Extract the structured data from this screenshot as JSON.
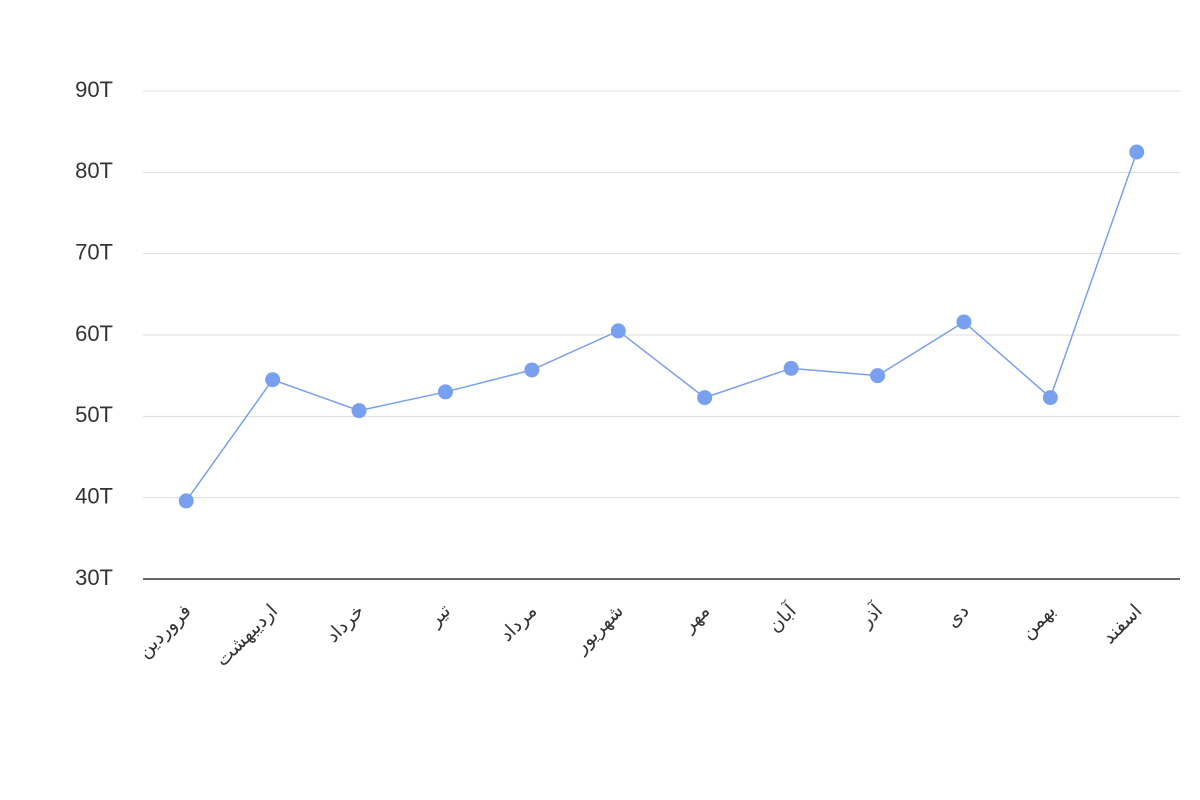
{
  "chart_data": {
    "type": "line",
    "categories": [
      "فروردین",
      "اردیبهشت",
      "خرداد",
      "تیر",
      "مرداد",
      "شهریور",
      "مهر",
      "آبان",
      "آذر",
      "دی",
      "بهمن",
      "اسفند"
    ],
    "series": [
      {
        "color": "#78a0ef",
        "values": [
          39.6,
          54.5,
          50.7,
          53.0,
          55.7,
          60.5,
          52.3,
          55.9,
          55.0,
          61.6,
          52.3,
          82.5
        ]
      }
    ],
    "ylim": [
      30,
      90
    ],
    "yticks": [
      {
        "value": 30,
        "label": "30T"
      },
      {
        "value": 40,
        "label": "40T"
      },
      {
        "value": 50,
        "label": "50T"
      },
      {
        "value": 60,
        "label": "60T"
      },
      {
        "value": 70,
        "label": "70T"
      },
      {
        "value": 80,
        "label": "80T"
      },
      {
        "value": 90,
        "label": "90T"
      }
    ],
    "grid": true
  }
}
